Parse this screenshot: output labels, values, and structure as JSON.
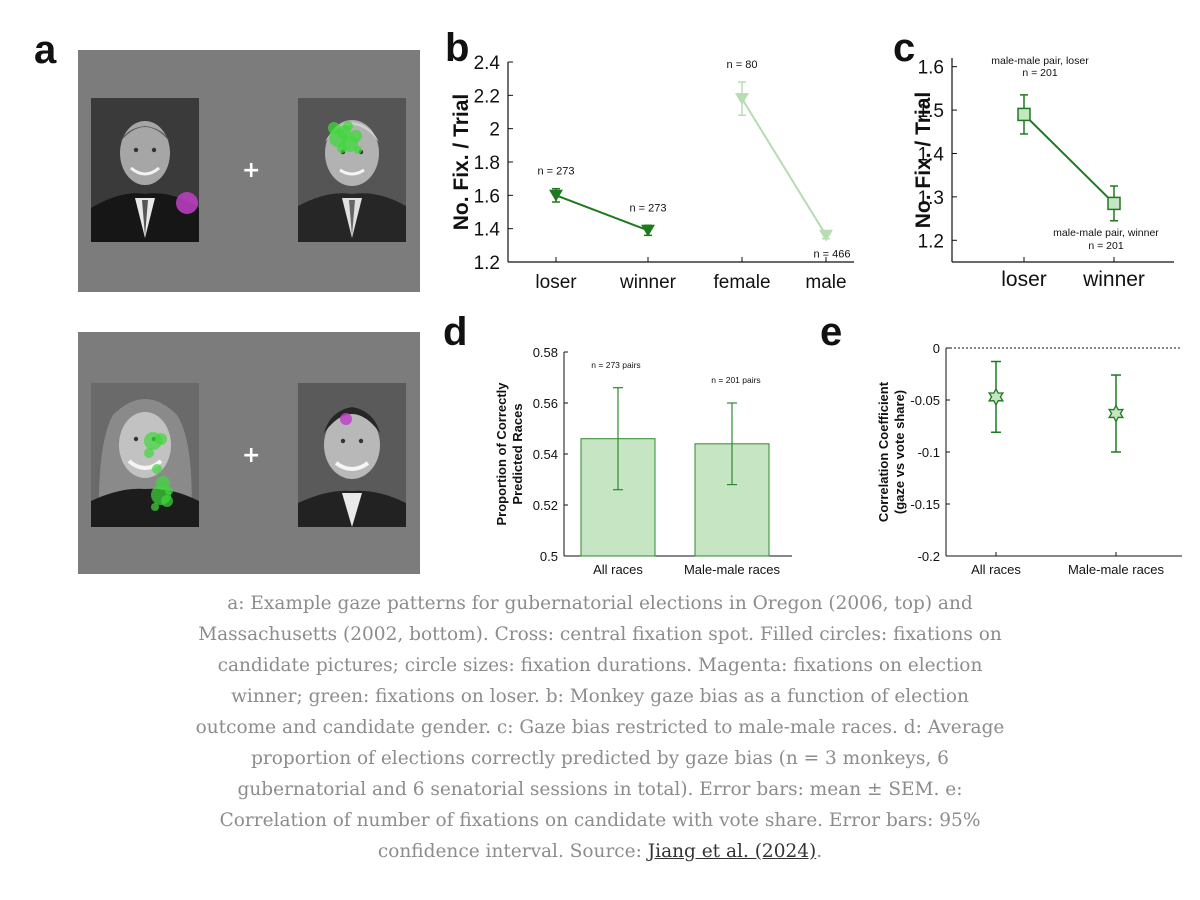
{
  "panels": {
    "a": {
      "letter": "a"
    },
    "b": {
      "letter": "b"
    },
    "c": {
      "letter": "c"
    },
    "d": {
      "letter": "d"
    },
    "e": {
      "letter": "e"
    }
  },
  "stimuli": {
    "cross_symbol": "+",
    "fixation_colors": {
      "winner": "#c040c8",
      "loser": "#3fd83a"
    }
  },
  "chart_data": [
    {
      "id": "b",
      "type": "line",
      "xlabel": "",
      "ylabel": "No. Fix. / Trial",
      "ylim": [
        1.2,
        2.4
      ],
      "yticks": [
        1.2,
        1.4,
        1.6,
        1.8,
        2,
        2.2,
        2.4
      ],
      "categories": [
        "loser",
        "winner",
        "female",
        "male"
      ],
      "series": [
        {
          "points": [
            {
              "x": "loser",
              "y": 1.6,
              "err": 0.04,
              "n": "n = 273"
            },
            {
              "x": "winner",
              "y": 1.39,
              "err": 0.03,
              "n": "n = 273"
            }
          ],
          "color": "#1e7a1e",
          "marker": "triangle-down"
        },
        {
          "points": [
            {
              "x": "female",
              "y": 2.18,
              "err": 0.1,
              "n": "n = 80"
            },
            {
              "x": "male",
              "y": 1.36,
              "err": 0.02,
              "n": "n = 466"
            }
          ],
          "color": "#b8dcb4",
          "marker": "triangle-down"
        }
      ]
    },
    {
      "id": "c",
      "type": "line",
      "xlabel": "",
      "ylabel": "No. Fix. / Trial",
      "ylim": [
        1.15,
        1.62
      ],
      "yticks": [
        1.2,
        1.3,
        1.4,
        1.5,
        1.6
      ],
      "categories": [
        "loser",
        "winner"
      ],
      "series": [
        {
          "points": [
            {
              "x": "loser",
              "y": 1.49,
              "err": 0.045,
              "label1": "male-male pair, loser",
              "label2": "n = 201"
            },
            {
              "x": "winner",
              "y": 1.285,
              "err": 0.04,
              "label1": "male-male pair, winner",
              "label2": "n = 201"
            }
          ],
          "color": "#1e7a1e",
          "marker": "square"
        }
      ]
    },
    {
      "id": "d",
      "type": "bar",
      "ylabel_lines": [
        "Proportion of Correctly",
        "Predicted Races"
      ],
      "ylim": [
        0.5,
        0.58
      ],
      "yticks": [
        0.5,
        0.52,
        0.54,
        0.56,
        0.58
      ],
      "categories": [
        "All races",
        "Male-male races"
      ],
      "values": [
        0.546,
        0.544
      ],
      "errors": [
        0.02,
        0.016
      ],
      "annotations": [
        "n = 273 pairs",
        "n = 201 pairs"
      ],
      "bar_color": "#c5e5c3",
      "edge_color": "#2d8a2d"
    },
    {
      "id": "e",
      "type": "scatter",
      "ylabel_lines": [
        "Correlation Coefficient",
        "(gaze vs vote share)"
      ],
      "ylim": [
        -0.2,
        0
      ],
      "yticks": [
        0,
        -0.05,
        -0.1,
        -0.15,
        -0.2
      ],
      "categories": [
        "All races",
        "Male-male races"
      ],
      "values": [
        -0.047,
        -0.063
      ],
      "ci_low": [
        -0.081,
        -0.1
      ],
      "ci_high": [
        -0.013,
        -0.026
      ],
      "reference_line": 0,
      "marker": "star",
      "color": "#1e7a1e"
    }
  ],
  "caption": {
    "text": "a: Example gaze patterns for gubernatorial elections in Oregon (2006, top) and Massachusetts (2002, bottom). Cross: central fixation spot. Filled circles: fixations on candidate pictures; circle sizes: fixation durations. Magenta: fixations on election winner; green: fixations on loser. b: Monkey gaze bias as a function of election outcome and candidate gender. c: Gaze bias restricted to male-male races. d: Average proportion of elections correctly predicted by gaze bias (n = 3 monkeys, 6 gubernatorial and 6 senatorial sessions in total). Error bars: mean ± SEM. e: Correlation of number of fixations on candidate with vote share. Error bars: 95% confidence interval. Source: ",
    "link_text": "Jiang et al. (2024)",
    "end": "."
  }
}
